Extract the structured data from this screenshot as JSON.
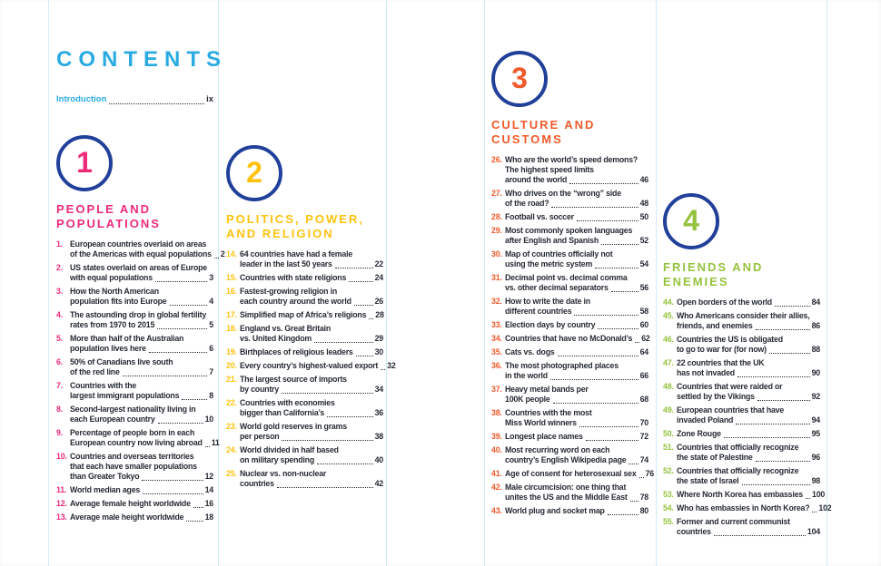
{
  "page": {
    "title": "CONTENTS",
    "intro": {
      "label": "Introduction",
      "page": "ix"
    }
  },
  "colors": {
    "title_blue": "#29ABE2",
    "circle_navy": "#21409A",
    "ink": "#262B33",
    "rule_blue": "#CFEAFB",
    "section_pink": "#EE2A7B",
    "section_yellow": "#FFC20E",
    "section_orange": "#F1592A",
    "section_green": "#95C23D"
  },
  "sections": [
    {
      "number": "1",
      "title": "PEOPLE AND\nPOPULATIONS",
      "color": "#EE2A7B",
      "items": [
        {
          "num": "1.",
          "lines": [
            "European countries overlaid on areas",
            "of the Americas with equal populations"
          ],
          "page": "2"
        },
        {
          "num": "2.",
          "lines": [
            "US states overlaid on areas of Europe",
            "with equal populations"
          ],
          "page": "3"
        },
        {
          "num": "3.",
          "lines": [
            "How the North American",
            "population fits into Europe"
          ],
          "page": "4"
        },
        {
          "num": "4.",
          "lines": [
            "The astounding drop in global fertility",
            "rates from 1970 to 2015"
          ],
          "page": "5"
        },
        {
          "num": "5.",
          "lines": [
            "More than half of the Australian",
            "population lives here"
          ],
          "page": "6"
        },
        {
          "num": "6.",
          "lines": [
            "50% of Canadians live south",
            "of the red line"
          ],
          "page": "7"
        },
        {
          "num": "7.",
          "lines": [
            "Countries with the",
            "largest immigrant populations"
          ],
          "page": "8"
        },
        {
          "num": "8.",
          "lines": [
            "Second-largest nationality living in",
            "each European country"
          ],
          "page": "10"
        },
        {
          "num": "9.",
          "lines": [
            "Percentage of people born in each",
            "European country now living abroad"
          ],
          "page": "11"
        },
        {
          "num": "10.",
          "lines": [
            "Countries and overseas territories",
            "that each have smaller populations",
            "than Greater Tokyo"
          ],
          "page": "12"
        },
        {
          "num": "11.",
          "lines": [
            "World median ages"
          ],
          "page": "14"
        },
        {
          "num": "12.",
          "lines": [
            "Average female height worldwide"
          ],
          "page": "16"
        },
        {
          "num": "13.",
          "lines": [
            "Average male height worldwide"
          ],
          "page": "18"
        }
      ]
    },
    {
      "number": "2",
      "title": "POLITICS, POWER,\nAND RELIGION",
      "color": "#FFC20E",
      "items": [
        {
          "num": "14.",
          "lines": [
            "64 countries have had a female",
            "leader in the last 50 years"
          ],
          "page": "22"
        },
        {
          "num": "15.",
          "lines": [
            "Countries with state religions"
          ],
          "page": "24"
        },
        {
          "num": "16.",
          "lines": [
            "Fastest-growing religion in",
            "each country around the world"
          ],
          "page": "26"
        },
        {
          "num": "17.",
          "lines": [
            "Simplified map of Africa’s religions"
          ],
          "page": "28"
        },
        {
          "num": "18.",
          "lines": [
            "England vs. Great Britain",
            "vs. United Kingdom"
          ],
          "page": "29"
        },
        {
          "num": "19.",
          "lines": [
            "Birthplaces of religious leaders"
          ],
          "page": "30"
        },
        {
          "num": "20.",
          "lines": [
            "Every country’s highest-valued export"
          ],
          "page": "32"
        },
        {
          "num": "21.",
          "lines": [
            "The largest source of imports",
            "by country"
          ],
          "page": "34"
        },
        {
          "num": "22.",
          "lines": [
            "Countries with economies",
            "bigger than California’s"
          ],
          "page": "36"
        },
        {
          "num": "23.",
          "lines": [
            "World gold reserves in grams",
            "per person"
          ],
          "page": "38"
        },
        {
          "num": "24.",
          "lines": [
            "World divided in half based",
            "on military spending"
          ],
          "page": "40"
        },
        {
          "num": "25.",
          "lines": [
            "Nuclear vs. non-nuclear",
            "countries"
          ],
          "page": "42"
        }
      ]
    },
    {
      "number": "3",
      "title": "CULTURE AND\nCUSTOMS",
      "color": "#F1592A",
      "items": [
        {
          "num": "26.",
          "lines": [
            "Who are the world’s speed demons?",
            "The highest speed limits",
            "around the world"
          ],
          "page": "46"
        },
        {
          "num": "27.",
          "lines": [
            "Who drives on the “wrong” side",
            "of the road?"
          ],
          "page": "48"
        },
        {
          "num": "28.",
          "lines": [
            "Football vs. soccer"
          ],
          "page": "50"
        },
        {
          "num": "29.",
          "lines": [
            "Most commonly spoken languages",
            "after English and Spanish"
          ],
          "page": "52"
        },
        {
          "num": "30.",
          "lines": [
            "Map of countries officially not",
            "using the metric system"
          ],
          "page": "54"
        },
        {
          "num": "31.",
          "lines": [
            "Decimal point vs. decimal comma",
            "vs. other decimal separators"
          ],
          "page": "56"
        },
        {
          "num": "32.",
          "lines": [
            "How to write the date in",
            "different countries"
          ],
          "page": "58"
        },
        {
          "num": "33.",
          "lines": [
            "Election days by country"
          ],
          "page": "60"
        },
        {
          "num": "34.",
          "lines": [
            "Countries that have no McDonald’s"
          ],
          "page": "62"
        },
        {
          "num": "35.",
          "lines": [
            "Cats vs. dogs"
          ],
          "page": "64"
        },
        {
          "num": "36.",
          "lines": [
            "The most photographed places",
            "in the world"
          ],
          "page": "66"
        },
        {
          "num": "37.",
          "lines": [
            "Heavy metal bands per",
            "100K people"
          ],
          "page": "68"
        },
        {
          "num": "38.",
          "lines": [
            "Countries with the most",
            "Miss World winners"
          ],
          "page": "70"
        },
        {
          "num": "39.",
          "lines": [
            "Longest place names"
          ],
          "page": "72"
        },
        {
          "num": "40.",
          "lines": [
            "Most recurring word on each",
            "country’s English Wikipedia page"
          ],
          "page": "74"
        },
        {
          "num": "41.",
          "lines": [
            "Age of consent for heterosexual sex"
          ],
          "page": "76"
        },
        {
          "num": "42.",
          "lines": [
            "Male circumcision: one thing that",
            "unites the US and the Middle East"
          ],
          "page": "78"
        },
        {
          "num": "43.",
          "lines": [
            "World plug and socket map"
          ],
          "page": "80"
        }
      ]
    },
    {
      "number": "4",
      "title": "FRIENDS AND\nENEMIES",
      "color": "#95C23D",
      "items": [
        {
          "num": "44.",
          "lines": [
            "Open borders of the world"
          ],
          "page": "84"
        },
        {
          "num": "45.",
          "lines": [
            "Who Americans consider their allies,",
            "friends, and enemies"
          ],
          "page": "86"
        },
        {
          "num": "46.",
          "lines": [
            "Countries the US is obligated",
            "to go to war for (for now)"
          ],
          "page": "88"
        },
        {
          "num": "47.",
          "lines": [
            "22 countries that the UK",
            "has not invaded"
          ],
          "page": "90"
        },
        {
          "num": "48.",
          "lines": [
            "Countries that were raided or",
            "settled by the Vikings"
          ],
          "page": "92"
        },
        {
          "num": "49.",
          "lines": [
            "European countries that have",
            "invaded Poland"
          ],
          "page": "94"
        },
        {
          "num": "50.",
          "lines": [
            "Zone Rouge"
          ],
          "page": "95"
        },
        {
          "num": "51.",
          "lines": [
            "Countries that officially recognize",
            "the state of Palestine"
          ],
          "page": "96"
        },
        {
          "num": "52.",
          "lines": [
            "Countries that officially recognize",
            "the state of Israel"
          ],
          "page": "98"
        },
        {
          "num": "53.",
          "lines": [
            "Where North Korea has embassies"
          ],
          "page": "100"
        },
        {
          "num": "54.",
          "lines": [
            "Who has embassies in North Korea?"
          ],
          "page": "102"
        },
        {
          "num": "55.",
          "lines": [
            "Former and current communist",
            "countries"
          ],
          "page": "104"
        }
      ]
    }
  ]
}
